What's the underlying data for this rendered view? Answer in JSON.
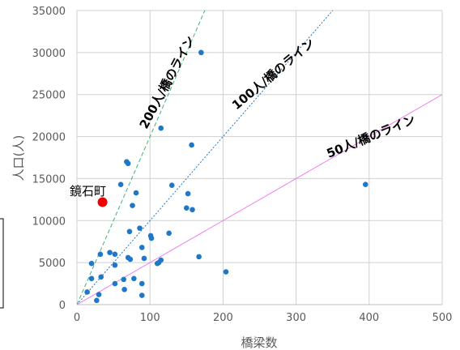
{
  "chart_data": {
    "type": "scatter",
    "xlabel": "橋梁数",
    "ylabel": "人口(人)",
    "xlim": [
      0,
      500
    ],
    "ylim": [
      0,
      35000
    ],
    "xticks": [
      0,
      100,
      200,
      300,
      400,
      500
    ],
    "yticks": [
      0,
      5000,
      10000,
      15000,
      20000,
      25000,
      30000,
      35000
    ],
    "grid": true,
    "colors": {
      "points": "#1f77c8",
      "highlight": "#ee0000",
      "line200": "#3cb371",
      "line100": "#1f77c8",
      "line50": "#ee82ee"
    },
    "reference_lines": [
      {
        "label": "200人/橋のライン",
        "slope": 200,
        "style": "dashed",
        "color": "#3cb371"
      },
      {
        "label": "100人/橋のライン",
        "slope": 100,
        "style": "dotted",
        "color": "#1f77c8"
      },
      {
        "label": "50人/橋のライン",
        "slope": 50,
        "style": "solid",
        "color": "#ee82ee"
      }
    ],
    "highlight": {
      "label": "鏡石町",
      "x": 35,
      "y": 12200
    },
    "points": [
      [
        170,
        30000
      ],
      [
        115,
        21000
      ],
      [
        157,
        19000
      ],
      [
        68,
        17000
      ],
      [
        70,
        16800
      ],
      [
        60,
        14300
      ],
      [
        130,
        14200
      ],
      [
        395,
        14300
      ],
      [
        81,
        13300
      ],
      [
        152,
        13200
      ],
      [
        76,
        11800
      ],
      [
        150,
        11500
      ],
      [
        158,
        11300
      ],
      [
        86,
        9100
      ],
      [
        72,
        8700
      ],
      [
        126,
        8500
      ],
      [
        101,
        8200
      ],
      [
        102,
        7900
      ],
      [
        89,
        6800
      ],
      [
        45,
        6200
      ],
      [
        32,
        6000
      ],
      [
        52,
        6000
      ],
      [
        167,
        5700
      ],
      [
        70,
        5600
      ],
      [
        92,
        5500
      ],
      [
        73,
        5400
      ],
      [
        115,
        5300
      ],
      [
        112,
        5000
      ],
      [
        110,
        4900
      ],
      [
        20,
        4900
      ],
      [
        52,
        4700
      ],
      [
        204,
        3900
      ],
      [
        33,
        3300
      ],
      [
        20,
        3100
      ],
      [
        64,
        3000
      ],
      [
        78,
        3100
      ],
      [
        89,
        2500
      ],
      [
        52,
        2500
      ],
      [
        65,
        1800
      ],
      [
        14,
        1500
      ],
      [
        30,
        1200
      ],
      [
        89,
        1100
      ],
      [
        27,
        500
      ]
    ]
  }
}
